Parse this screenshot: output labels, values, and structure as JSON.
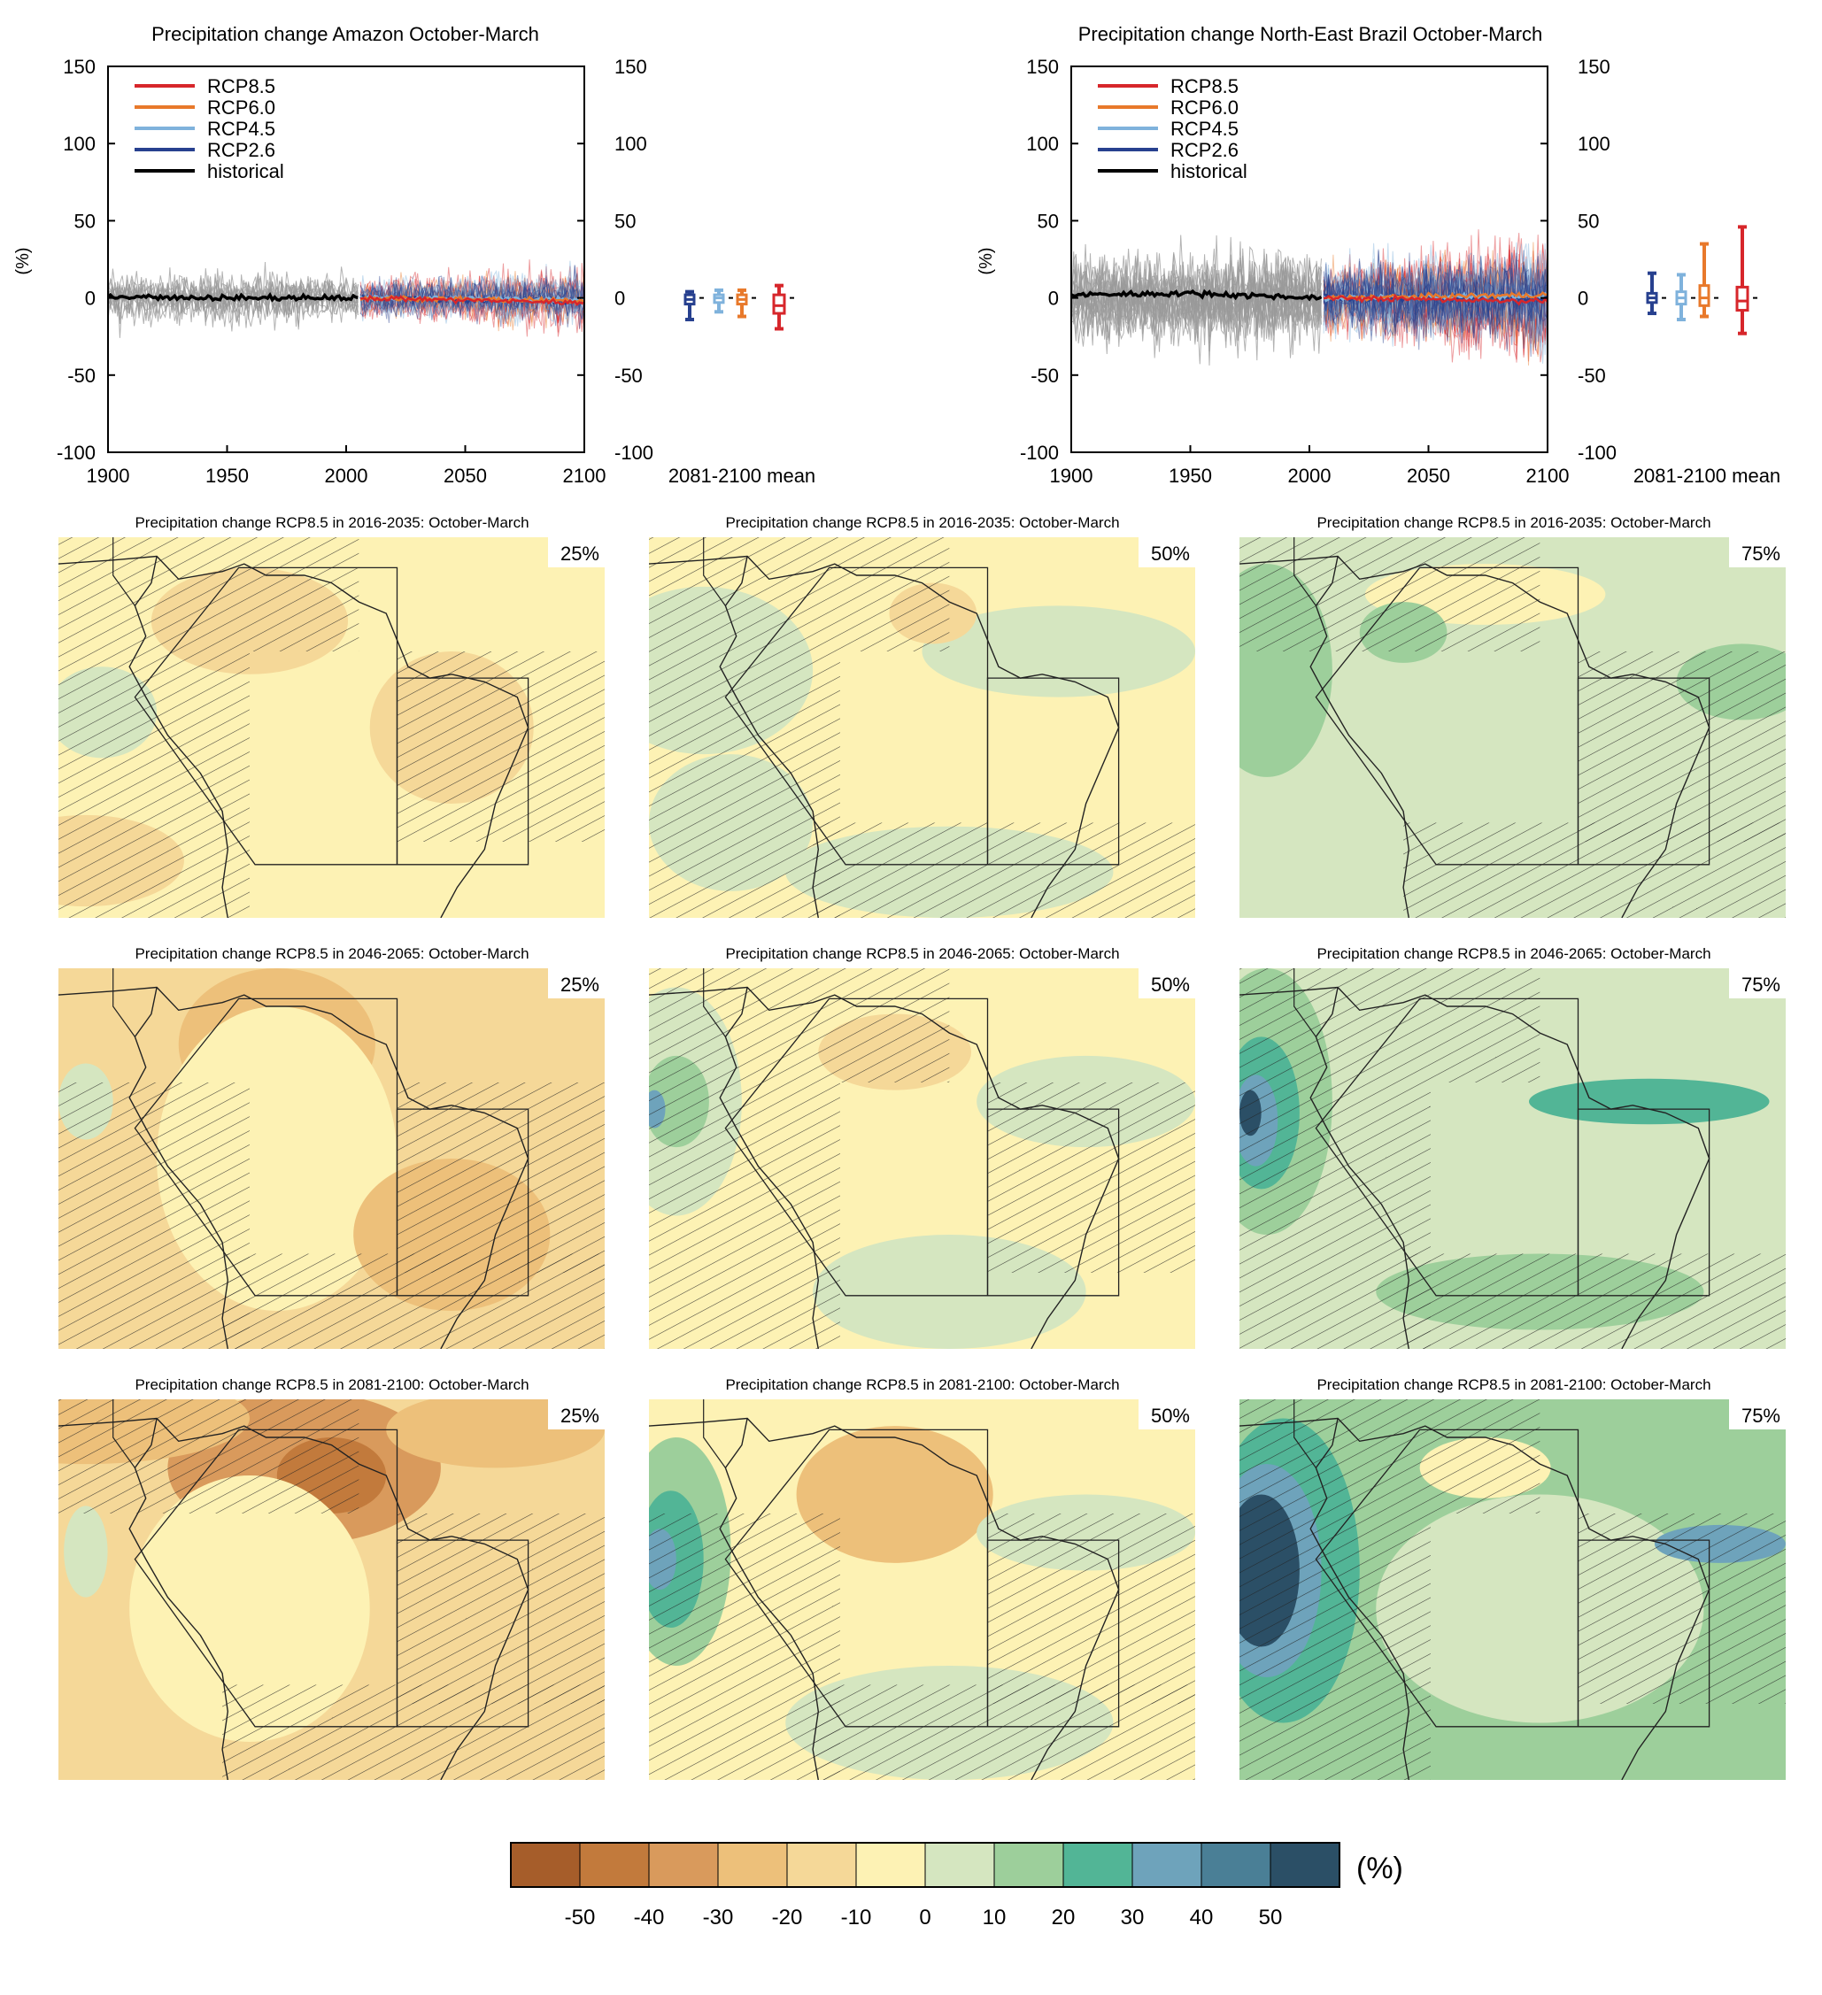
{
  "figure": {
    "ts_panels": [
      {
        "id": "amazon",
        "title": "Precipitation change Amazon October-March",
        "ylabel": "(%)",
        "yticks": [
          150,
          100,
          50,
          0,
          -50,
          -100
        ],
        "xticks": [
          1900,
          1950,
          2000,
          2050,
          2100
        ],
        "box_label": "2081-2100 mean",
        "legend": [
          {
            "label": "RCP8.5",
            "color": "#d7262b"
          },
          {
            "label": "RCP6.0",
            "color": "#e8792b"
          },
          {
            "label": "RCP4.5",
            "color": "#7fb2dc"
          },
          {
            "label": "RCP2.6",
            "color": "#27408f"
          },
          {
            "label": "historical",
            "color": "#000000"
          }
        ]
      },
      {
        "id": "nebrazil",
        "title": "Precipitation change North-East Brazil October-March",
        "ylabel": "(%)",
        "yticks": [
          150,
          100,
          50,
          0,
          -50,
          -100
        ],
        "xticks": [
          1900,
          1950,
          2000,
          2050,
          2100
        ],
        "box_label": "2081-2100 mean",
        "legend": [
          {
            "label": "RCP8.5",
            "color": "#d7262b"
          },
          {
            "label": "RCP6.0",
            "color": "#e8792b"
          },
          {
            "label": "RCP4.5",
            "color": "#7fb2dc"
          },
          {
            "label": "RCP2.6",
            "color": "#27408f"
          },
          {
            "label": "historical",
            "color": "#000000"
          }
        ]
      }
    ],
    "maps": [
      {
        "title": "Precipitation change RCP8.5 in 2016-2035: October-March",
        "pct": "25%",
        "row": 0,
        "col": 0
      },
      {
        "title": "Precipitation change RCP8.5 in 2016-2035: October-March",
        "pct": "50%",
        "row": 0,
        "col": 1
      },
      {
        "title": "Precipitation change RCP8.5 in 2016-2035: October-March",
        "pct": "75%",
        "row": 0,
        "col": 2
      },
      {
        "title": "Precipitation change RCP8.5 in 2046-2065: October-March",
        "pct": "25%",
        "row": 1,
        "col": 0
      },
      {
        "title": "Precipitation change RCP8.5 in 2046-2065: October-March",
        "pct": "50%",
        "row": 1,
        "col": 1
      },
      {
        "title": "Precipitation change RCP8.5 in 2046-2065: October-March",
        "pct": "75%",
        "row": 1,
        "col": 2
      },
      {
        "title": "Precipitation change RCP8.5 in 2081-2100: October-March",
        "pct": "25%",
        "row": 2,
        "col": 0
      },
      {
        "title": "Precipitation change RCP8.5 in 2081-2100: October-March",
        "pct": "50%",
        "row": 2,
        "col": 1
      },
      {
        "title": "Precipitation change RCP8.5 in 2081-2100: October-March",
        "pct": "75%",
        "row": 2,
        "col": 2
      }
    ],
    "colorbar": {
      "unit": "(%)",
      "labels": [
        "-50",
        "-40",
        "-30",
        "-20",
        "-10",
        "0",
        "10",
        "20",
        "30",
        "40",
        "50"
      ],
      "colors": [
        "#a65d2a",
        "#c27a3c",
        "#d99a5c",
        "#edc07a",
        "#f5d898",
        "#fdf2b4",
        "#d5e6c0",
        "#9dcf9b",
        "#52b596",
        "#6ea3bb",
        "#4a7f96",
        "#2b4f66"
      ]
    }
  },
  "chart_data": [
    {
      "type": "line",
      "title": "Precipitation change Amazon October-March",
      "ylabel": "(%)",
      "xlim": [
        1900,
        2100
      ],
      "ylim": [
        -100,
        150
      ],
      "series": [
        {
          "name": "historical",
          "x": [
            1900,
            1950,
            2005
          ],
          "values": [
            1,
            0,
            0
          ]
        },
        {
          "name": "RCP2.6",
          "x": [
            2006,
            2100
          ],
          "values": [
            0,
            -2
          ]
        },
        {
          "name": "RCP4.5",
          "x": [
            2006,
            2100
          ],
          "values": [
            0,
            -1
          ]
        },
        {
          "name": "RCP6.0",
          "x": [
            2006,
            2100
          ],
          "values": [
            0,
            -2
          ]
        },
        {
          "name": "RCP8.5",
          "x": [
            2006,
            2100
          ],
          "values": [
            0,
            -3
          ]
        }
      ],
      "boxplot_2081_2100": [
        {
          "name": "RCP2.6",
          "min": -14,
          "q1": -4,
          "median": -1,
          "q3": 2,
          "max": 4
        },
        {
          "name": "RCP4.5",
          "min": -9,
          "q1": -3,
          "median": 0,
          "q3": 2,
          "max": 5
        },
        {
          "name": "RCP6.0",
          "min": -12,
          "q1": -4,
          "median": -1,
          "q3": 2,
          "max": 5
        },
        {
          "name": "RCP8.5",
          "min": -20,
          "q1": -10,
          "median": -5,
          "q3": 2,
          "max": 8
        }
      ]
    },
    {
      "type": "line",
      "title": "Precipitation change North-East Brazil October-March",
      "ylabel": "(%)",
      "xlim": [
        1900,
        2100
      ],
      "ylim": [
        -100,
        150
      ],
      "series": [
        {
          "name": "historical",
          "x": [
            1900,
            1950,
            2005
          ],
          "values": [
            2,
            3,
            0
          ]
        },
        {
          "name": "RCP2.6",
          "x": [
            2006,
            2100
          ],
          "values": [
            0,
            0
          ]
        },
        {
          "name": "RCP4.5",
          "x": [
            2006,
            2100
          ],
          "values": [
            0,
            1
          ]
        },
        {
          "name": "RCP6.0",
          "x": [
            2006,
            2100
          ],
          "values": [
            0,
            2
          ]
        },
        {
          "name": "RCP8.5",
          "x": [
            2006,
            2100
          ],
          "values": [
            0,
            -2
          ]
        }
      ],
      "boxplot_2081_2100": [
        {
          "name": "RCP2.6",
          "min": -10,
          "q1": -3,
          "median": 0,
          "q3": 3,
          "max": 16
        },
        {
          "name": "RCP4.5",
          "min": -14,
          "q1": -4,
          "median": 0,
          "q3": 4,
          "max": 15
        },
        {
          "name": "RCP6.0",
          "min": -12,
          "q1": -5,
          "median": 0,
          "q3": 8,
          "max": 35
        },
        {
          "name": "RCP8.5",
          "min": -23,
          "q1": -8,
          "median": -2,
          "q3": 7,
          "max": 46
        }
      ]
    }
  ]
}
